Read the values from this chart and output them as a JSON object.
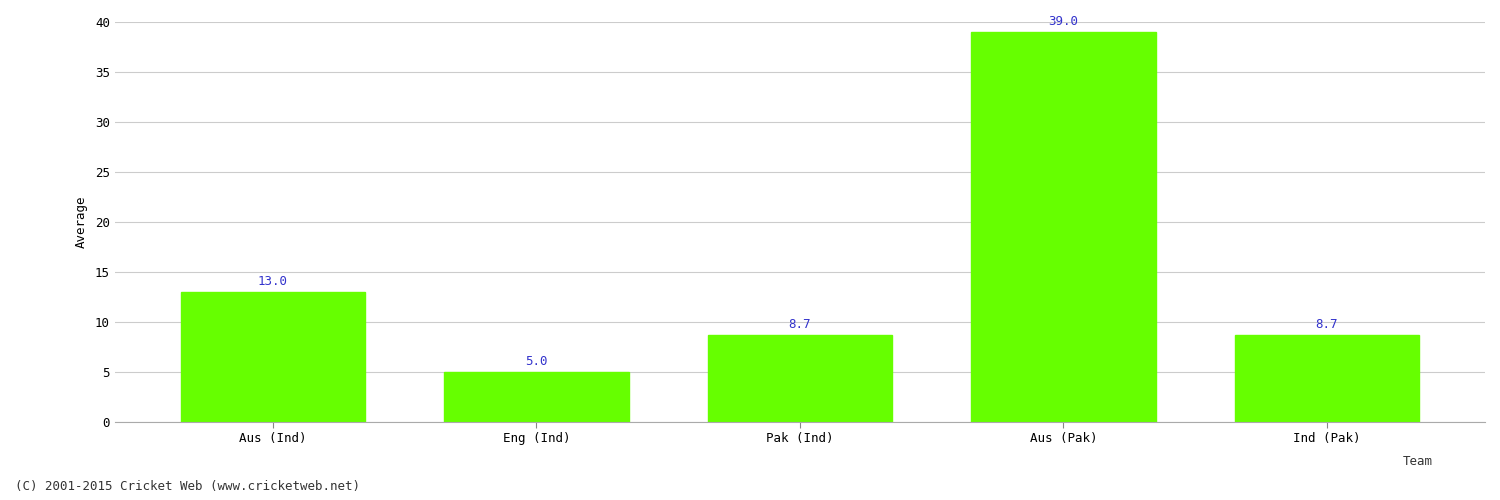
{
  "categories": [
    "Aus (Ind)",
    "Eng (Ind)",
    "Pak (Ind)",
    "Aus (Pak)",
    "Ind (Pak)"
  ],
  "values": [
    13.0,
    5.0,
    8.7,
    39.0,
    8.7
  ],
  "bar_color": "#66ff00",
  "bar_edge_color": "#66ff00",
  "label_color": "#3333cc",
  "xlabel": "Team",
  "ylabel": "Average",
  "ylim": [
    0,
    40
  ],
  "yticks": [
    0,
    5,
    10,
    15,
    20,
    25,
    30,
    35,
    40
  ],
  "background_color": "#ffffff",
  "grid_color": "#cccccc",
  "footer_text": "(C) 2001-2015 Cricket Web (www.cricketweb.net)",
  "label_fontsize": 9,
  "axis_label_fontsize": 9,
  "tick_fontsize": 9,
  "footer_fontsize": 9
}
